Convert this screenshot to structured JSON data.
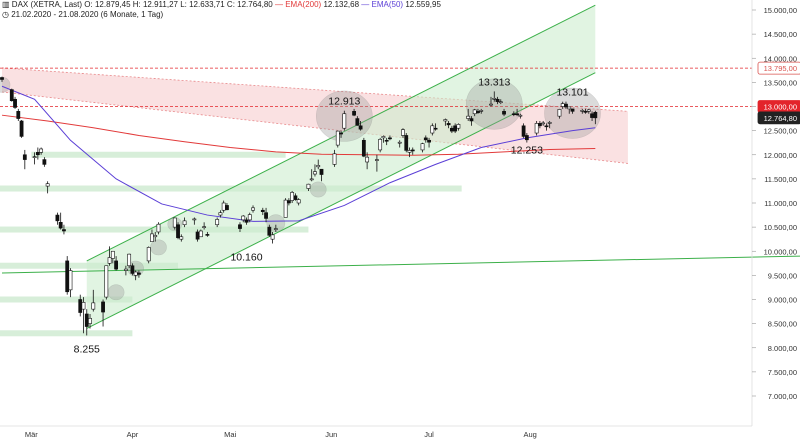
{
  "header": {
    "symbol_icon": "candlestick-icon",
    "title": "DAX (XETRA, Last)",
    "ohlc": "O: 12.879,45  H: 12.911,27  L: 12.633,71  C: 12.764,80",
    "ema200_label": "EMA(200)",
    "ema200_value": "12.132,68",
    "ema50_label": "EMA(50)",
    "ema50_value": "12.559,95",
    "clock_icon": "clock-icon",
    "range": "21.02.2020 - 21.08.2020",
    "period": "(6 Monate, 1 Tag)"
  },
  "chart_data": {
    "type": "candlestick",
    "instrument": "DAX (XETRA, Last)",
    "y_axis": {
      "side": "right",
      "range": [
        7000,
        15000
      ],
      "ticks": [
        7000,
        7500,
        8000,
        8500,
        9000,
        9500,
        10000,
        10500,
        11000,
        11500,
        12000,
        12500,
        13000,
        13500,
        14000,
        14500,
        15000
      ],
      "tick_labels": [
        "7.000,00",
        "7.500,00",
        "8.000,00",
        "8.500,00",
        "9.000,00",
        "9.500,00",
        "10.000,00",
        "10.500,00",
        "11.000,00",
        "11.500,00",
        "12.000,00",
        "12.500,00",
        "13.000,00",
        "13.500,00",
        "14.000,00",
        "14.500,00",
        "15.000,00"
      ]
    },
    "x_axis": {
      "labels": [
        "Mär",
        "Apr",
        "Mai",
        "Jun",
        "Jul",
        "Aug"
      ],
      "dates": [
        "2020-03-01",
        "2020-04-01",
        "2020-05-01",
        "2020-06-01",
        "2020-07-01",
        "2020-08-01"
      ],
      "range": [
        "2020-02-21",
        "2020-08-21"
      ]
    },
    "grid": false,
    "price_tags": [
      {
        "value": 13795,
        "label": "13.795,00",
        "color": "#d9534f",
        "style": "outline"
      },
      {
        "value": 13000,
        "label": "13.000,00",
        "color": "#e3242b",
        "style": "filled"
      },
      {
        "value": 12764.8,
        "label": "12.764,80",
        "color": "#222222",
        "style": "filled"
      }
    ],
    "annotations": [
      {
        "text": "8.255",
        "date": "2020-03-18",
        "value": 8255
      },
      {
        "text": "10.160",
        "date": "2020-05-06",
        "value": 10160
      },
      {
        "text": "12.913",
        "date": "2020-06-05",
        "value": 12913
      },
      {
        "text": "13.313",
        "date": "2020-07-21",
        "value": 13313
      },
      {
        "text": "12.253",
        "date": "2020-07-31",
        "value": 12253
      },
      {
        "text": "13.101",
        "date": "2020-08-14",
        "value": 13101
      }
    ],
    "series": [
      {
        "name": "EMA(200)",
        "color": "#e23a3a",
        "points": [
          [
            "2020-02-21",
            12820
          ],
          [
            "2020-03-06",
            12700
          ],
          [
            "2020-03-20",
            12560
          ],
          [
            "2020-04-03",
            12400
          ],
          [
            "2020-04-17",
            12270
          ],
          [
            "2020-05-01",
            12150
          ],
          [
            "2020-05-15",
            12060
          ],
          [
            "2020-05-29",
            12010
          ],
          [
            "2020-06-12",
            12000
          ],
          [
            "2020-06-26",
            11990
          ],
          [
            "2020-07-10",
            12010
          ],
          [
            "2020-07-24",
            12060
          ],
          [
            "2020-08-07",
            12110
          ],
          [
            "2020-08-21",
            12130
          ]
        ]
      },
      {
        "name": "EMA(50)",
        "color": "#5b3fd6",
        "points": [
          [
            "2020-02-21",
            13420
          ],
          [
            "2020-03-02",
            13150
          ],
          [
            "2020-03-13",
            12300
          ],
          [
            "2020-03-27",
            11500
          ],
          [
            "2020-04-10",
            10980
          ],
          [
            "2020-04-24",
            10750
          ],
          [
            "2020-05-08",
            10620
          ],
          [
            "2020-05-22",
            10630
          ],
          [
            "2020-06-05",
            10950
          ],
          [
            "2020-06-19",
            11420
          ],
          [
            "2020-07-03",
            11800
          ],
          [
            "2020-07-17",
            12150
          ],
          [
            "2020-07-31",
            12350
          ],
          [
            "2020-08-14",
            12500
          ],
          [
            "2020-08-21",
            12560
          ]
        ]
      }
    ],
    "channels": [
      {
        "kind": "ascending",
        "color": "#3cb04a",
        "lower_start": [
          "2020-03-18",
          8400
        ],
        "lower_end": [
          "2020-08-21",
          13700
        ],
        "upper_start": [
          "2020-03-18",
          9800
        ],
        "upper_end": [
          "2020-08-21",
          15100
        ]
      },
      {
        "kind": "descending",
        "color": "#e8898b",
        "upper_start": [
          "2020-02-21",
          13800
        ],
        "upper_end": [
          "2020-08-31",
          12900
        ],
        "lower_start": [
          "2020-02-21",
          13300
        ],
        "lower_end": [
          "2020-08-31",
          11820
        ]
      }
    ],
    "horizontal_lines": [
      {
        "value": 13795,
        "color": "#e3242b",
        "style": "dashed"
      },
      {
        "value": 13000,
        "color": "#e3242b",
        "style": "dashed"
      }
    ],
    "trend_line": {
      "color": "#3cb04a",
      "start": [
        "2020-02-21",
        9550
      ],
      "end": [
        "2020-08-31",
        9900
      ]
    },
    "support_zones": [
      {
        "value": 8300,
        "to": "2020-04-01"
      },
      {
        "value": 9000,
        "to": "2020-04-01"
      },
      {
        "value": 9700,
        "to": "2020-04-15"
      },
      {
        "value": 10450,
        "to": "2020-05-25"
      },
      {
        "value": 11300,
        "to": "2020-07-11"
      },
      {
        "value": 12000,
        "from": "2020-03-01",
        "to": "2020-05-18"
      }
    ],
    "candles": [
      [
        "2020-02-21",
        13600,
        13620,
        13510,
        13560
      ],
      [
        "2020-02-24",
        13350,
        13370,
        13100,
        13120
      ],
      [
        "2020-02-25",
        13150,
        13200,
        12950,
        12980
      ],
      [
        "2020-02-26",
        12900,
        12950,
        12700,
        12750
      ],
      [
        "2020-02-27",
        12700,
        12720,
        12350,
        12380
      ],
      [
        "2020-02-28",
        12000,
        12100,
        11700,
        11900
      ],
      [
        "2020-03-02",
        11950,
        12050,
        11800,
        11960
      ],
      [
        "2020-03-03",
        12050,
        12150,
        11900,
        12000
      ],
      [
        "2020-03-04",
        12050,
        12150,
        12000,
        12120
      ],
      [
        "2020-03-05",
        11900,
        11950,
        11750,
        11800
      ],
      [
        "2020-03-06",
        11350,
        11450,
        11200,
        11400
      ],
      [
        "2020-03-09",
        10750,
        10800,
        10550,
        10630
      ],
      [
        "2020-03-10",
        10600,
        10800,
        10450,
        10480
      ],
      [
        "2020-03-11",
        10450,
        10550,
        10350,
        10420
      ],
      [
        "2020-03-12",
        9800,
        9900,
        9100,
        9160
      ],
      [
        "2020-03-13",
        9200,
        9650,
        9050,
        9600
      ],
      [
        "2020-03-16",
        9000,
        9100,
        8650,
        8730
      ],
      [
        "2020-03-17",
        8800,
        9050,
        8300,
        8940
      ],
      [
        "2020-03-18",
        8700,
        8800,
        8255,
        8440
      ],
      [
        "2020-03-19",
        8500,
        8700,
        8400,
        8610
      ],
      [
        "2020-03-20",
        8800,
        9200,
        8750,
        8930
      ],
      [
        "2020-03-23",
        8950,
        9000,
        8440,
        8740
      ],
      [
        "2020-03-24",
        9050,
        9700,
        9000,
        9700
      ],
      [
        "2020-03-25",
        9750,
        10100,
        9700,
        9870
      ],
      [
        "2020-03-26",
        9850,
        10000,
        9750,
        10000
      ],
      [
        "2020-03-27",
        9800,
        9900,
        9600,
        9630
      ],
      [
        "2020-03-30",
        9600,
        9700,
        9500,
        9630
      ],
      [
        "2020-03-31",
        9700,
        9950,
        9650,
        9940
      ],
      [
        "2020-04-01",
        9700,
        9750,
        9500,
        9540
      ],
      [
        "2020-04-02",
        9500,
        9600,
        9400,
        9570
      ],
      [
        "2020-04-03",
        9550,
        9600,
        9450,
        9520
      ],
      [
        "2020-04-06",
        9800,
        10100,
        9750,
        10080
      ],
      [
        "2020-04-07",
        10200,
        10450,
        10250,
        10360
      ],
      [
        "2020-04-08",
        10300,
        10400,
        10200,
        10330
      ],
      [
        "2020-04-09",
        10400,
        10600,
        10350,
        10560
      ],
      [
        "2020-04-14",
        10500,
        10700,
        10450,
        10690
      ],
      [
        "2020-04-15",
        10550,
        10600,
        10250,
        10280
      ],
      [
        "2020-04-16",
        10250,
        10350,
        10200,
        10300
      ],
      [
        "2020-04-17",
        10550,
        10700,
        10500,
        10630
      ],
      [
        "2020-04-20",
        10650,
        10700,
        10550,
        10670
      ],
      [
        "2020-04-21",
        10400,
        10450,
        10200,
        10250
      ],
      [
        "2020-04-22",
        10300,
        10450,
        10300,
        10420
      ],
      [
        "2020-04-23",
        10500,
        10600,
        10450,
        10510
      ],
      [
        "2020-04-24",
        10350,
        10400,
        10300,
        10340
      ],
      [
        "2020-04-27",
        10550,
        10700,
        10500,
        10660
      ],
      [
        "2020-04-28",
        10750,
        10850,
        10700,
        10800
      ],
      [
        "2020-04-29",
        10850,
        11050,
        10800,
        11000
      ],
      [
        "2020-04-30",
        10950,
        11000,
        10850,
        10860
      ],
      [
        "2020-05-04",
        10550,
        10600,
        10400,
        10470
      ],
      [
        "2020-05-05",
        10650,
        10750,
        10600,
        10730
      ],
      [
        "2020-05-06",
        10650,
        10700,
        10550,
        10600
      ],
      [
        "2020-05-07",
        10650,
        10800,
        10600,
        10760
      ],
      [
        "2020-05-08",
        10850,
        10950,
        10800,
        10900
      ],
      [
        "2020-05-11",
        10850,
        10900,
        10750,
        10820
      ],
      [
        "2020-05-12",
        10800,
        10900,
        10600,
        10680
      ],
      [
        "2020-05-13",
        10500,
        10550,
        10300,
        10330
      ],
      [
        "2020-05-14",
        10250,
        10400,
        10160,
        10340
      ],
      [
        "2020-05-15",
        10450,
        10550,
        10400,
        10470
      ],
      [
        "2020-05-18",
        10700,
        11100,
        10700,
        11060
      ],
      [
        "2020-05-19",
        11050,
        11100,
        10950,
        11000
      ],
      [
        "2020-05-20",
        11050,
        11250,
        11000,
        11220
      ],
      [
        "2020-05-21",
        11150,
        11200,
        11050,
        11070
      ],
      [
        "2020-05-22",
        11000,
        11100,
        10950,
        11070
      ],
      [
        "2020-05-25",
        11300,
        11400,
        11250,
        11390
      ],
      [
        "2020-05-26",
        11500,
        11700,
        11450,
        11500
      ],
      [
        "2020-05-27",
        11600,
        11800,
        11550,
        11650
      ],
      [
        "2020-05-28",
        11750,
        11900,
        11700,
        11780
      ],
      [
        "2020-05-29",
        11700,
        11700,
        11450,
        11590
      ],
      [
        "2020-06-02",
        11800,
        12100,
        11750,
        12020
      ],
      [
        "2020-06-03",
        12200,
        12500,
        12150,
        12490
      ],
      [
        "2020-06-04",
        12450,
        12500,
        12350,
        12430
      ],
      [
        "2020-06-05",
        12550,
        12913,
        12500,
        12850
      ],
      [
        "2020-06-08",
        12900,
        12950,
        12800,
        12820
      ],
      [
        "2020-06-09",
        12750,
        12800,
        12600,
        12610
      ],
      [
        "2020-06-10",
        12600,
        12700,
        12500,
        12530
      ],
      [
        "2020-06-11",
        12300,
        12350,
        11950,
        11970
      ],
      [
        "2020-06-12",
        11850,
        12050,
        11700,
        11950
      ],
      [
        "2020-06-15",
        11900,
        12000,
        11650,
        11900
      ],
      [
        "2020-06-16",
        12100,
        12350,
        12050,
        12320
      ],
      [
        "2020-06-17",
        12350,
        12400,
        12250,
        12380
      ],
      [
        "2020-06-18",
        12300,
        12350,
        12200,
        12280
      ],
      [
        "2020-06-19",
        12350,
        12400,
        12300,
        12330
      ],
      [
        "2020-06-22",
        12250,
        12300,
        12150,
        12260
      ],
      [
        "2020-06-23",
        12400,
        12550,
        12350,
        12520
      ],
      [
        "2020-06-24",
        12400,
        12450,
        12050,
        12090
      ],
      [
        "2020-06-25",
        12050,
        12150,
        11950,
        12090
      ],
      [
        "2020-06-26",
        12100,
        12150,
        12000,
        12090
      ],
      [
        "2020-06-29",
        12100,
        12250,
        12050,
        12230
      ],
      [
        "2020-06-30",
        12350,
        12400,
        12250,
        12310
      ],
      [
        "2020-07-01",
        12300,
        12350,
        12150,
        12260
      ],
      [
        "2020-07-02",
        12450,
        12650,
        12400,
        12600
      ],
      [
        "2020-07-03",
        12550,
        12650,
        12500,
        12530
      ],
      [
        "2020-07-06",
        12700,
        12750,
        12600,
        12730
      ],
      [
        "2020-07-07",
        12650,
        12700,
        12550,
        12620
      ],
      [
        "2020-07-08",
        12550,
        12600,
        12450,
        12490
      ],
      [
        "2020-07-09",
        12600,
        12650,
        12450,
        12490
      ],
      [
        "2020-07-10",
        12550,
        12650,
        12500,
        12630
      ],
      [
        "2020-07-13",
        12750,
        12950,
        12700,
        12800
      ],
      [
        "2020-07-14",
        12750,
        12800,
        12600,
        12700
      ],
      [
        "2020-07-15",
        12850,
        12950,
        12800,
        12930
      ],
      [
        "2020-07-16",
        12900,
        12950,
        12850,
        12870
      ],
      [
        "2020-07-17",
        12900,
        12950,
        12850,
        12920
      ],
      [
        "2020-07-20",
        13050,
        13200,
        13000,
        13050
      ],
      [
        "2020-07-21",
        13150,
        13313,
        13100,
        13170
      ],
      [
        "2020-07-22",
        13150,
        13200,
        13050,
        13100
      ],
      [
        "2020-07-23",
        13100,
        13150,
        13050,
        13100
      ],
      [
        "2020-07-24",
        12900,
        12950,
        12800,
        12840
      ],
      [
        "2020-07-27",
        12850,
        12900,
        12800,
        12840
      ],
      [
        "2020-07-28",
        12850,
        12950,
        12800,
        12830
      ],
      [
        "2020-07-29",
        12800,
        12850,
        12750,
        12820
      ],
      [
        "2020-07-30",
        12600,
        12650,
        12350,
        12380
      ],
      [
        "2020-07-31",
        12400,
        12450,
        12253,
        12310
      ],
      [
        "2020-08-03",
        12450,
        12700,
        12400,
        12650
      ],
      [
        "2020-08-04",
        12650,
        12700,
        12550,
        12600
      ],
      [
        "2020-08-05",
        12650,
        12700,
        12600,
        12660
      ],
      [
        "2020-08-06",
        12600,
        12650,
        12500,
        12590
      ],
      [
        "2020-08-07",
        12650,
        12700,
        12550,
        12670
      ],
      [
        "2020-08-10",
        12800,
        12950,
        12750,
        12940
      ],
      [
        "2020-08-11",
        13000,
        13100,
        12950,
        13060
      ],
      [
        "2020-08-12",
        13050,
        13101,
        12950,
        12990
      ],
      [
        "2020-08-13",
        12950,
        13000,
        12850,
        12990
      ],
      [
        "2020-08-14",
        12950,
        12950,
        12850,
        12900
      ],
      [
        "2020-08-17",
        12900,
        12950,
        12850,
        12920
      ],
      [
        "2020-08-18",
        12900,
        12950,
        12850,
        12880
      ],
      [
        "2020-08-19",
        12900,
        12950,
        12850,
        12930
      ],
      [
        "2020-08-20",
        12850,
        12900,
        12700,
        12770
      ],
      [
        "2020-08-21",
        12879.45,
        12911.27,
        12633.71,
        12764.8
      ]
    ]
  }
}
